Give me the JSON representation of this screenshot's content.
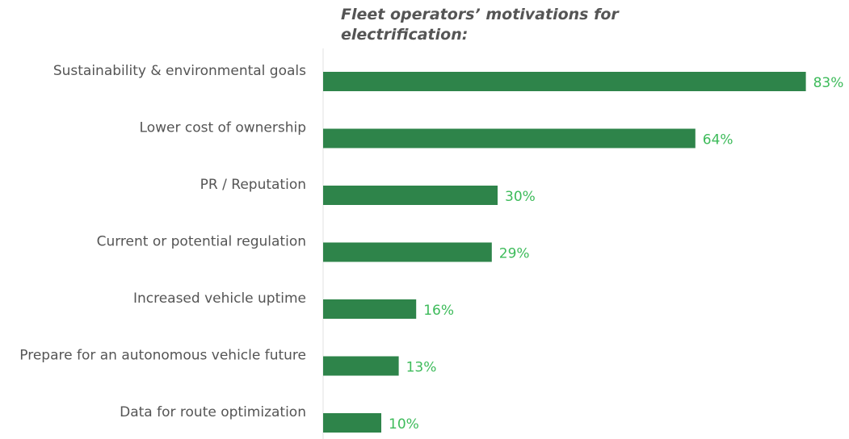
{
  "chart_data": {
    "type": "bar",
    "orientation": "horizontal",
    "title": "Fleet operators’ motivations for electrification:",
    "categories": [
      "Sustainability & environmental goals",
      "Lower cost of ownership",
      "PR / Reputation",
      "Current or potential regulation",
      "Increased vehicle uptime",
      "Prepare for an autonomous vehicle future",
      "Data for route optimization"
    ],
    "values": [
      83,
      64,
      30,
      29,
      16,
      13,
      10
    ],
    "value_labels": [
      "83%",
      "64%",
      "30%",
      "29%",
      "16%",
      "13%",
      "10%"
    ],
    "color": "#2e844a",
    "label_color": "#3dbb5a"
  }
}
